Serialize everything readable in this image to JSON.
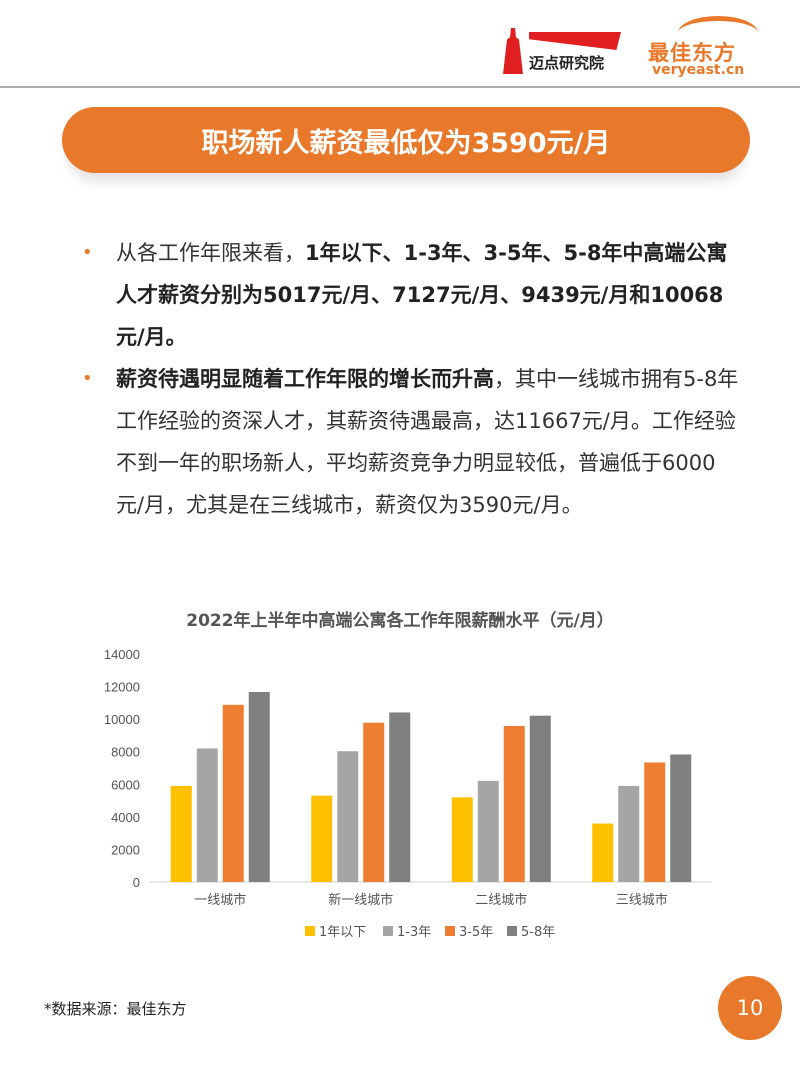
{
  "header": {
    "logo1_text": "迈点研究院",
    "logo2_cn": "最佳东方",
    "logo2_en": "veryeast.cn"
  },
  "banner": {
    "title": "职场新人薪资最低仅为3590元/月"
  },
  "bullets": [
    {
      "plain_before": "从各工作年限来看，",
      "bold": "1年以下、1-3年、3-5年、5-8年中高端公寓人才薪资分别为5017元/月、7127元/月、9439元/月和10068元/月。",
      "plain_after": ""
    },
    {
      "plain_before": "",
      "bold": "薪资待遇明显随着工作年限的增长而升高",
      "plain_after": "，其中一线城市拥有5-8年工作经验的资深人才，其薪资待遇最高，达11667元/月。工作经验不到一年的职场新人，平均薪资竞争力明显较低，普遍低于6000元/月，尤其是在三线城市，薪资仅为3590元/月。"
    }
  ],
  "bullet_symbol": "•",
  "chart_data": {
    "type": "bar",
    "title": "2022年上半年中高端公寓各工作年限薪酬水平（元/月）",
    "categories": [
      "一线城市",
      "新一线城市",
      "二线城市",
      "三线城市"
    ],
    "series": [
      {
        "name": "1年以下",
        "color": "#ffc000",
        "values": [
          5900,
          5300,
          5200,
          3590
        ]
      },
      {
        "name": "1-3年",
        "color": "#a5a5a5",
        "values": [
          8200,
          8030,
          6210,
          5900
        ]
      },
      {
        "name": "3-5年",
        "color": "#ed7d31",
        "values": [
          10880,
          9780,
          9580,
          7340
        ]
      },
      {
        "name": "5-8年",
        "color": "#7f7f7f",
        "values": [
          11667,
          10410,
          10210,
          7830
        ]
      }
    ],
    "yticks": [
      "0",
      "2000",
      "4000",
      "6000",
      "8000",
      "10000",
      "12000",
      "14000"
    ],
    "ylim": [
      0,
      14000
    ],
    "legend": "bottom",
    "grid": false
  },
  "footer": {
    "source": "*数据来源：最佳东方",
    "page": "10"
  }
}
